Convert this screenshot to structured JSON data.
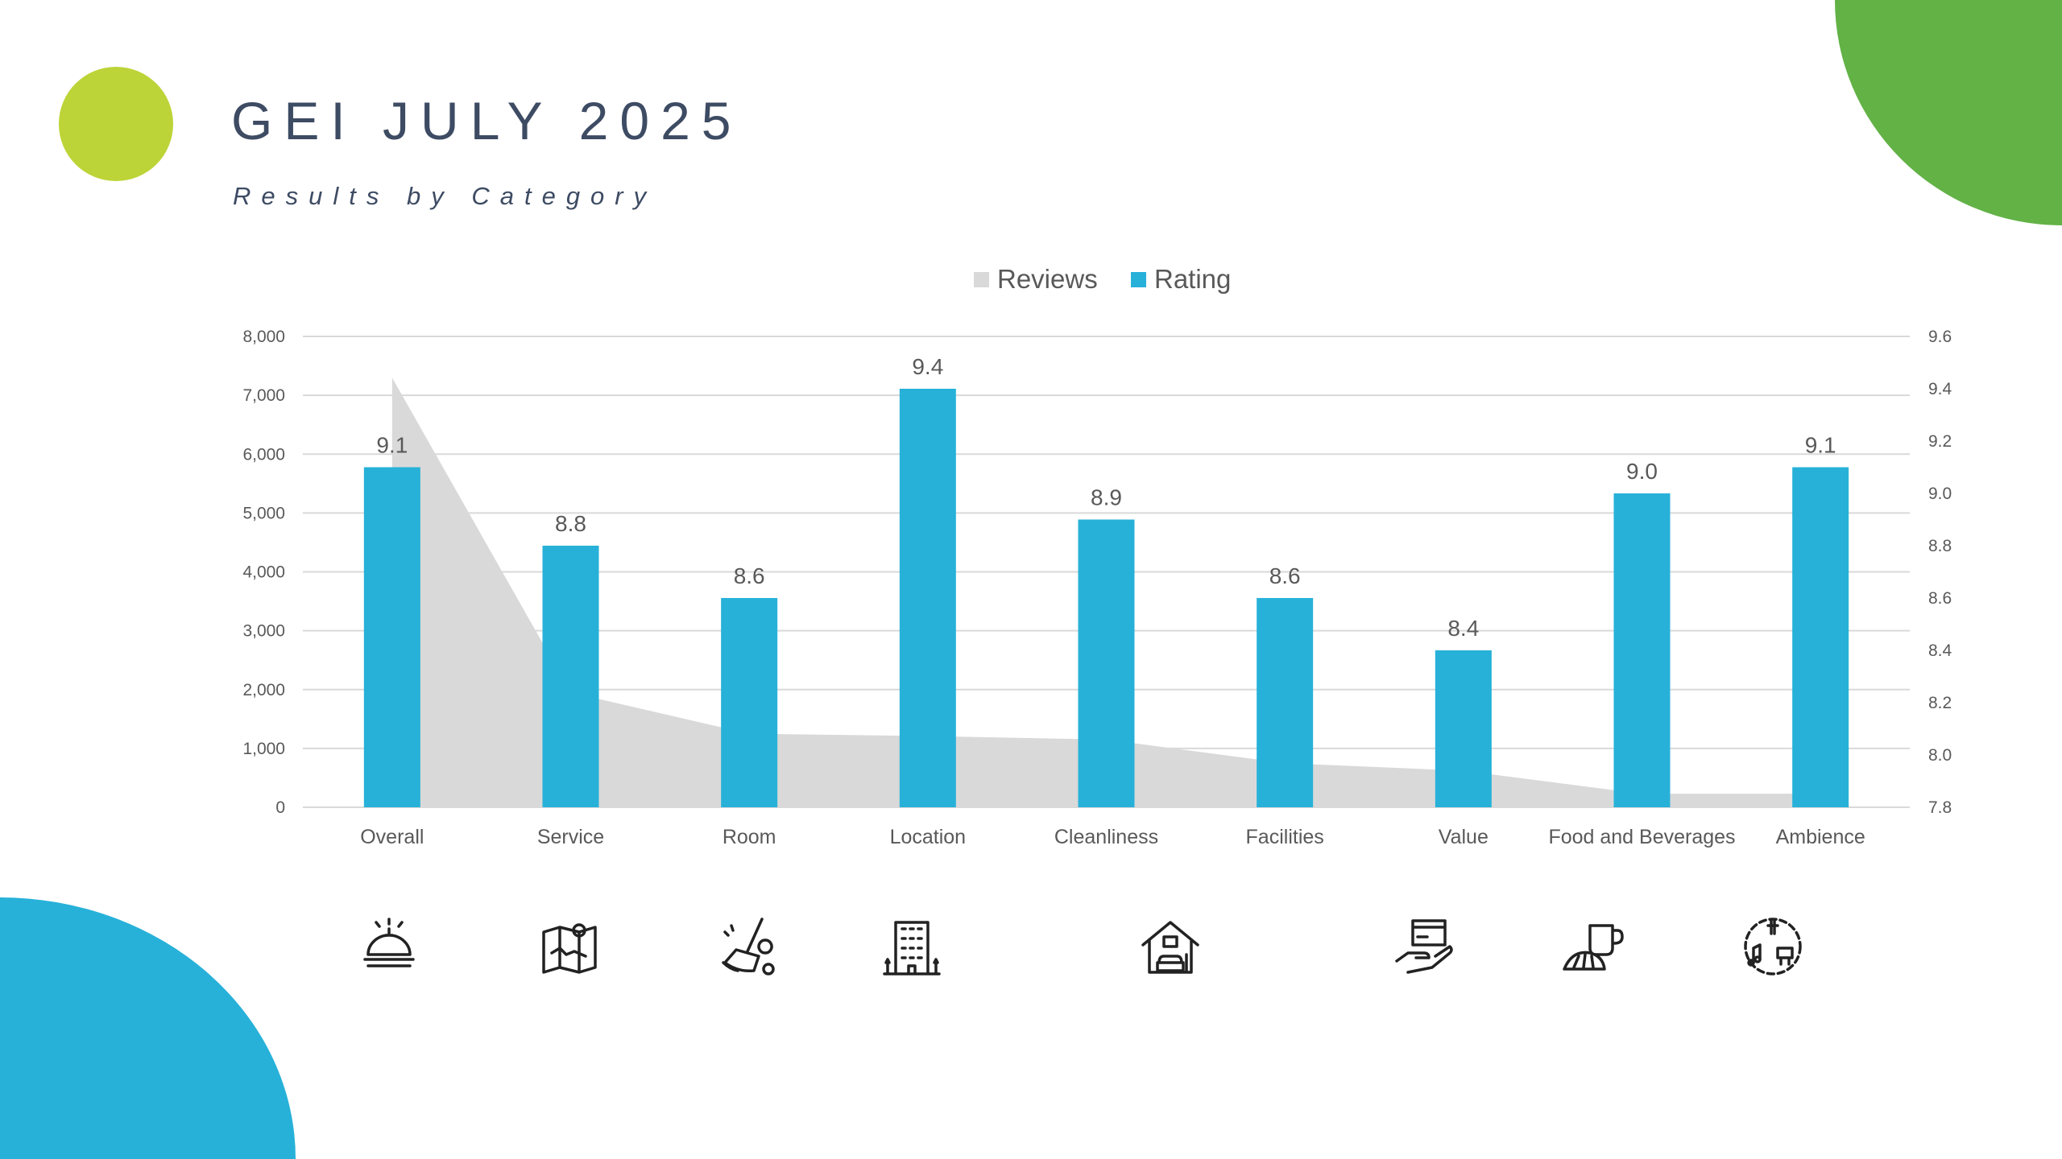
{
  "header": {
    "title": "GEI JULY 2025",
    "subtitle": "Results by Category"
  },
  "colors": {
    "reviews": "#d9d9d9",
    "rating": "#27b1d9",
    "accent_green": "#62b246",
    "dot": "#bcd437",
    "blue_shape": "#27b1d9"
  },
  "chart_data": {
    "type": "bar+area",
    "categories": [
      "Overall",
      "Service",
      "Room",
      "Location",
      "Cleanliness",
      "Facilities",
      "Value",
      "Food and Beverages",
      "Ambience"
    ],
    "series": [
      {
        "name": "Reviews",
        "type": "area",
        "axis": "left",
        "values": [
          7300,
          1950,
          1250,
          1210,
          1150,
          750,
          620,
          230,
          230
        ]
      },
      {
        "name": "Rating",
        "type": "bar",
        "axis": "right",
        "values": [
          9.1,
          8.8,
          8.6,
          9.4,
          8.9,
          8.6,
          8.4,
          9.0,
          9.1
        ],
        "labels": [
          "9.1",
          "8.8",
          "8.6",
          "9.4",
          "8.9",
          "8.6",
          "8.4",
          "9.0",
          "9.1"
        ]
      }
    ],
    "left_axis": {
      "range": [
        0,
        8000
      ],
      "ticks": [
        "0",
        "1,000",
        "2,000",
        "3,000",
        "4,000",
        "5,000",
        "6,000",
        "7,000",
        "8,000"
      ]
    },
    "right_axis": {
      "range": [
        7.8,
        9.6
      ],
      "ticks": [
        "7.8",
        "8.0",
        "8.2",
        "8.4",
        "8.6",
        "8.8",
        "9.0",
        "9.2",
        "9.4",
        "9.6"
      ]
    },
    "legend": {
      "position": "top",
      "entries": [
        "Reviews",
        "Rating"
      ]
    },
    "grid": true
  },
  "icons": [
    "concierge-bell-icon",
    "map-icon",
    "cleaning-broom-icon",
    "building-icon",
    "home-facilities-icon",
    "payment-hand-icon",
    "coffee-croissant-icon",
    "music-ambience-icon"
  ]
}
